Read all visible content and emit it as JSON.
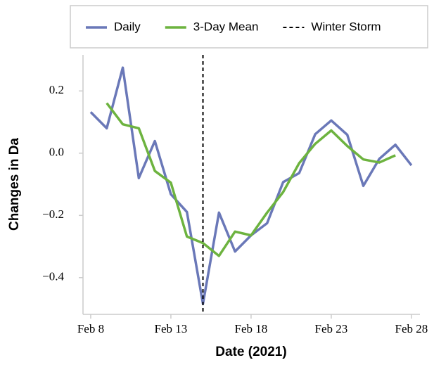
{
  "chart_data": {
    "type": "line",
    "x_label": "Date (2021)",
    "y_label": "Changes in Da",
    "x": [
      8,
      9,
      10,
      11,
      12,
      13,
      14,
      15,
      16,
      17,
      18,
      19,
      20,
      21,
      22,
      23,
      24,
      25,
      26,
      27,
      28
    ],
    "series": [
      {
        "name": "Daily",
        "color": "#6a78b8",
        "values": [
          0.132,
          0.08,
          0.275,
          -0.08,
          0.039,
          -0.132,
          -0.189,
          -0.484,
          -0.191,
          -0.316,
          -0.264,
          -0.225,
          -0.093,
          -0.064,
          0.061,
          0.105,
          0.059,
          -0.105,
          -0.018,
          0.027,
          -0.039
        ]
      },
      {
        "name": "3-Day Mean",
        "color": "#6db33f",
        "values": [
          null,
          0.161,
          0.093,
          0.08,
          -0.057,
          -0.095,
          -0.268,
          -0.289,
          -0.33,
          -0.252,
          -0.264,
          -0.191,
          -0.125,
          -0.032,
          0.03,
          0.073,
          0.023,
          -0.02,
          -0.03,
          -0.007,
          null
        ]
      }
    ],
    "event": {
      "x": 15,
      "name": "Winter Storm",
      "color": "#000000"
    },
    "xlim": [
      7.52,
      28.53
    ],
    "ylim": [
      -0.518,
      0.316
    ],
    "xticks": [
      {
        "value": 8,
        "label": "Feb 8"
      },
      {
        "value": 13,
        "label": "Feb 13"
      },
      {
        "value": 18,
        "label": "Feb 18"
      },
      {
        "value": 23,
        "label": "Feb 23"
      },
      {
        "value": 28,
        "label": "Feb 28"
      }
    ],
    "yticks": [
      {
        "value": -0.4,
        "label": "−0.4"
      },
      {
        "value": -0.2,
        "label": "−0.2"
      },
      {
        "value": 0,
        "label": "0.0"
      },
      0.2
    ],
    "legend": "top"
  }
}
